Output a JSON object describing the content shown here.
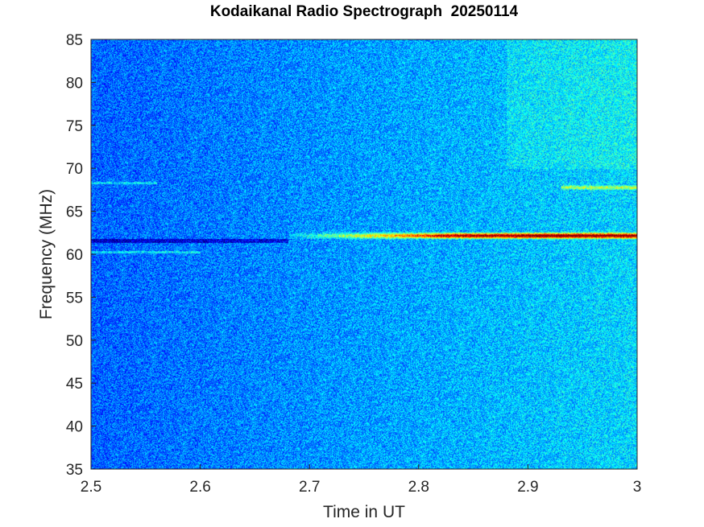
{
  "chart_data": {
    "type": "heatmap",
    "title": "Kodaikanal Radio Spectrograph  20250114",
    "xlabel": "Time in UT",
    "ylabel": "Frequency (MHz)",
    "xlim": [
      2.5,
      3.0
    ],
    "ylim": [
      35,
      85
    ],
    "x_ticks": [
      "2.5",
      "2.6",
      "2.7",
      "2.8",
      "2.9",
      "3"
    ],
    "y_ticks": [
      "35",
      "40",
      "45",
      "50",
      "55",
      "60",
      "65",
      "70",
      "75",
      "80",
      "85"
    ],
    "colormap": "jet",
    "colors": {
      "background_low": "#1f4fd0",
      "background_mid": "#1c7de6",
      "cyan": "#34c8ee",
      "burst_peak": "#c41a10"
    },
    "features": [
      {
        "kind": "emission_lane",
        "freq_mhz": 62.2,
        "t_start": 2.68,
        "t_end": 3.0,
        "peak_time": 2.93,
        "intensity": "high"
      },
      {
        "kind": "emission_lane",
        "freq_mhz": 67.8,
        "t_start": 2.93,
        "t_end": 3.0,
        "intensity": "medium"
      },
      {
        "kind": "dark_line",
        "freq_mhz": 61.6,
        "t_start": 2.5,
        "t_end": 2.68
      },
      {
        "kind": "faint_line",
        "freq_mhz": 60.3,
        "t_start": 2.5,
        "t_end": 2.6
      },
      {
        "kind": "faint_line",
        "freq_mhz": 68.3,
        "t_start": 2.5,
        "t_end": 2.56
      }
    ]
  }
}
